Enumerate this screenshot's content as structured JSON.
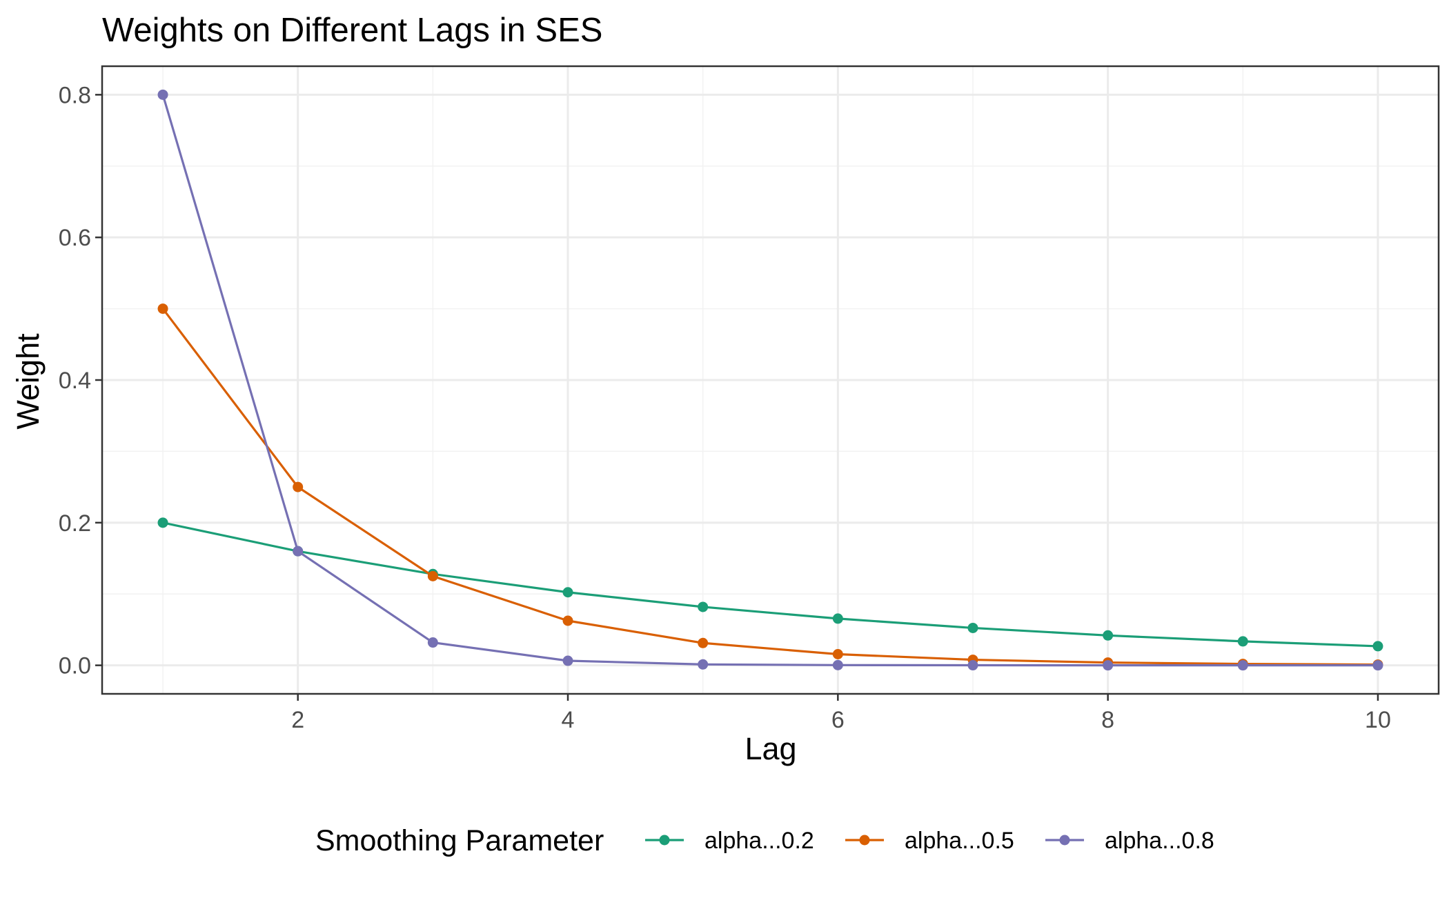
{
  "chart_data": {
    "type": "line",
    "title": "Weights on Different Lags in SES",
    "xlabel": "Lag",
    "ylabel": "Weight",
    "x": [
      1,
      2,
      3,
      4,
      5,
      6,
      7,
      8,
      9,
      10
    ],
    "xlim": [
      0.55,
      10.45
    ],
    "ylim": [
      -0.04,
      0.84
    ],
    "xticks": [
      2,
      4,
      6,
      8,
      10
    ],
    "xtick_labels": [
      "2",
      "4",
      "6",
      "8",
      "10"
    ],
    "yticks": [
      0.0,
      0.2,
      0.4,
      0.6,
      0.8
    ],
    "ytick_labels": [
      "0.0",
      "0.2",
      "0.4",
      "0.6",
      "0.8"
    ],
    "grid": true,
    "legend": {
      "title": "Smoothing Parameter",
      "position": "bottom"
    },
    "series": [
      {
        "name": "alpha...0.2",
        "color": "#1b9e77",
        "values": [
          0.2,
          0.16,
          0.128,
          0.1024,
          0.0819,
          0.0655,
          0.0524,
          0.0419,
          0.0336,
          0.0268
        ]
      },
      {
        "name": "alpha...0.5",
        "color": "#d95f02",
        "values": [
          0.5,
          0.25,
          0.125,
          0.0625,
          0.0313,
          0.0156,
          0.0078,
          0.0039,
          0.002,
          0.001
        ]
      },
      {
        "name": "alpha...0.8",
        "color": "#7570b3",
        "values": [
          0.8,
          0.16,
          0.032,
          0.0064,
          0.0013,
          0.0003,
          0.0001,
          0.0,
          0.0,
          0.0
        ]
      }
    ]
  }
}
